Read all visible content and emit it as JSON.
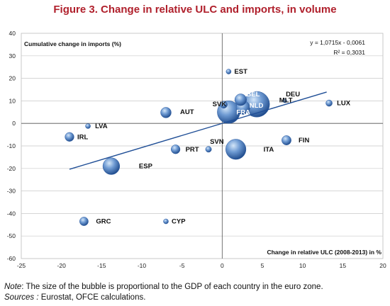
{
  "title": "Figure 3. Change in relative ULC and imports, in volume",
  "colors": {
    "title": "#b0202c",
    "bubble": "#3b6fb8",
    "trend": "#1f4e96",
    "grid": "#c8c8c8"
  },
  "chart_data": {
    "type": "bubble",
    "xlabel": "Change in relative ULC (2008-2013) in %",
    "ylabel": "Cumulative change in imports (%)",
    "xlim": [
      -25,
      20
    ],
    "ylim": [
      -60,
      40
    ],
    "xticks": [
      -25,
      -20,
      -15,
      -10,
      -5,
      0,
      5,
      10,
      15,
      20
    ],
    "yticks": [
      40,
      30,
      20,
      10,
      0,
      -10,
      -20,
      -30,
      -40,
      -50,
      -60
    ],
    "grid": true,
    "points": [
      {
        "label": "DEU",
        "x": 4.3,
        "y": 8.5,
        "size": 27.0
      },
      {
        "label": "FRA",
        "x": 0.8,
        "y": 5.0,
        "size": 20.5
      },
      {
        "label": "ITA",
        "x": 1.7,
        "y": -11.5,
        "size": 16.0
      },
      {
        "label": "ESP",
        "x": -13.8,
        "y": -19.0,
        "size": 10.5
      },
      {
        "label": "NLD",
        "x": 2.6,
        "y": 7.0,
        "size": 6.5
      },
      {
        "label": "BEL",
        "x": 2.3,
        "y": 10.5,
        "size": 4.5
      },
      {
        "label": "AUT",
        "x": -7.0,
        "y": 4.8,
        "size": 3.5
      },
      {
        "label": "FIN",
        "x": 8.0,
        "y": -7.5,
        "size": 2.6
      },
      {
        "label": "IRL",
        "x": -19.0,
        "y": -6.0,
        "size": 2.3
      },
      {
        "label": "PRT",
        "x": -5.8,
        "y": -11.5,
        "size": 2.3
      },
      {
        "label": "GRC",
        "x": -17.2,
        "y": -43.5,
        "size": 2.1
      },
      {
        "label": "SVK",
        "x": 0.2,
        "y": 8.3,
        "size": 1.2
      },
      {
        "label": "LUX",
        "x": 13.3,
        "y": 9.0,
        "size": 0.9
      },
      {
        "label": "SVN",
        "x": -1.7,
        "y": -11.5,
        "size": 0.7
      },
      {
        "label": "EST",
        "x": 0.8,
        "y": 23.0,
        "size": 0.4
      },
      {
        "label": "LVA",
        "x": -16.7,
        "y": -1.2,
        "size": 0.4
      },
      {
        "label": "CYP",
        "x": -7.0,
        "y": -43.5,
        "size": 0.4
      },
      {
        "label": "MLT",
        "x": 7.8,
        "y": 10.0,
        "size": 0.15
      }
    ],
    "trendline": {
      "equation": "y = 1,0715x - 0,0061",
      "r2": "R² = 0,3031",
      "x_start": -19.0,
      "x_end": 13.0,
      "slope": 1.0715,
      "intercept": -0.0061
    }
  },
  "notes": {
    "note_label": "Note",
    "note_text": ": The size of the bubble is proportional to the GDP of each country in the euro zone.",
    "sources_label": "Sources :",
    "sources_text": " Eurostat, OFCE calculations."
  }
}
